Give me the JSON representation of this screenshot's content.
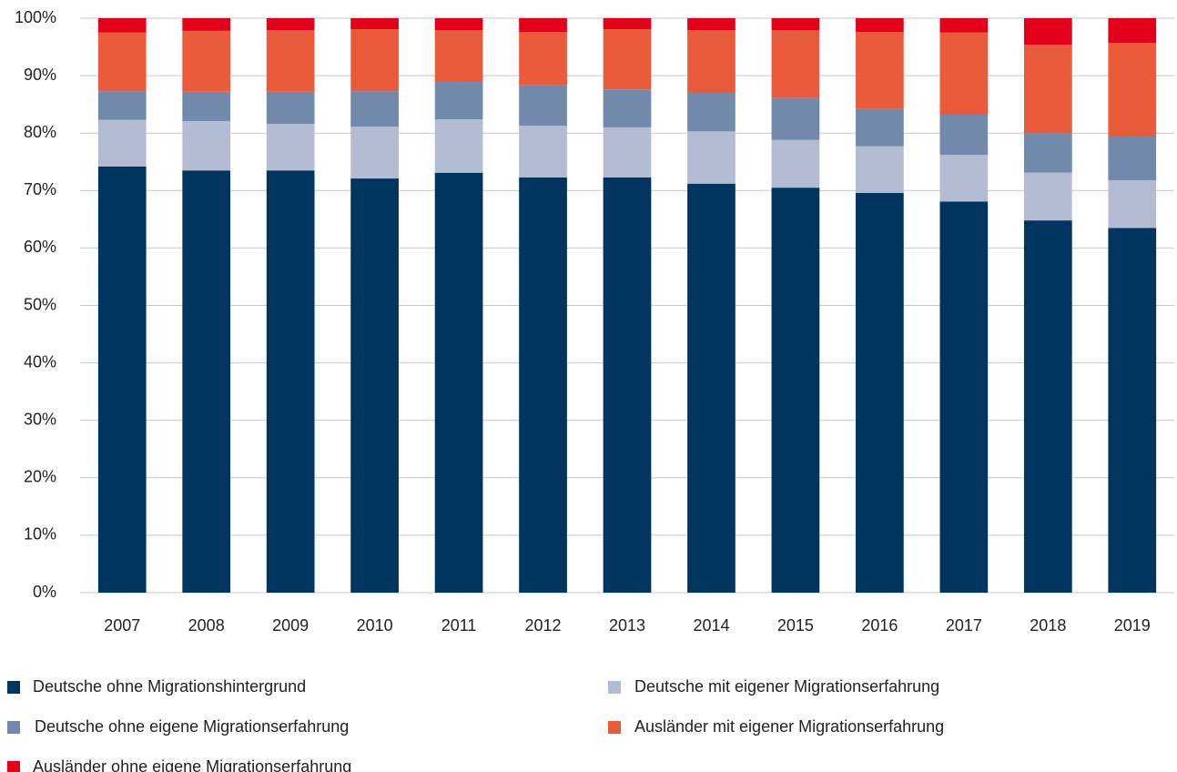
{
  "chart_data": {
    "type": "stacked_bar",
    "categories": [
      "2007",
      "2008",
      "2009",
      "2010",
      "2011",
      "2012",
      "2013",
      "2014",
      "2015",
      "2016",
      "2017",
      "2018",
      "2019"
    ],
    "series": [
      {
        "name": "Deutsche ohne Migrationshintergrund",
        "color": "#003560",
        "values": [
          74.2,
          73.5,
          73.5,
          72.1,
          73.1,
          72.3,
          72.3,
          71.2,
          70.5,
          69.6,
          68.1,
          64.8,
          63.5
        ]
      },
      {
        "name": "Deutsche mit eigener Migrationserfahrung",
        "color": "#b4bcd4",
        "values": [
          8.1,
          8.6,
          8.1,
          9.0,
          9.3,
          9.0,
          8.7,
          9.1,
          8.3,
          8.1,
          8.1,
          8.3,
          8.3
        ]
      },
      {
        "name": "Deutsche ohne eigene Migrationserfahrung",
        "color": "#7189ab",
        "values": [
          5.0,
          5.1,
          5.6,
          6.2,
          6.5,
          7.0,
          6.6,
          6.7,
          7.4,
          6.6,
          7.0,
          6.9,
          7.6
        ]
      },
      {
        "name": "Ausländer mit eigener Migrationserfahrung",
        "color": "#ea5b3c",
        "values": [
          10.2,
          10.6,
          10.7,
          10.8,
          9.0,
          9.3,
          10.5,
          10.9,
          11.7,
          13.3,
          14.3,
          15.4,
          16.3
        ]
      },
      {
        "name": "Ausländer ohne eigene Migrationserfahrung",
        "color": "#e2001a",
        "values": [
          2.5,
          2.2,
          2.1,
          1.9,
          2.1,
          2.4,
          1.9,
          2.1,
          2.1,
          2.4,
          2.5,
          4.6,
          4.3
        ]
      }
    ],
    "ylim": [
      0,
      100
    ],
    "yticks": [
      {
        "value": 0,
        "label": "0%"
      },
      {
        "value": 10,
        "label": "10%"
      },
      {
        "value": 20,
        "label": "20%"
      },
      {
        "value": 30,
        "label": "30%"
      },
      {
        "value": 40,
        "label": "40%"
      },
      {
        "value": 50,
        "label": "50%"
      },
      {
        "value": 60,
        "label": "60%"
      },
      {
        "value": 70,
        "label": "70%"
      },
      {
        "value": 80,
        "label": "80%"
      },
      {
        "value": 90,
        "label": "90%"
      },
      {
        "value": 100,
        "label": "100%"
      }
    ],
    "grid": true
  }
}
